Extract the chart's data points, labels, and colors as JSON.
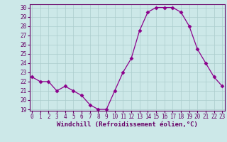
{
  "x": [
    0,
    1,
    2,
    3,
    4,
    5,
    6,
    7,
    8,
    9,
    10,
    11,
    12,
    13,
    14,
    15,
    16,
    17,
    18,
    19,
    20,
    21,
    22,
    23
  ],
  "y": [
    22.5,
    22.0,
    22.0,
    21.0,
    21.5,
    21.0,
    20.5,
    19.5,
    19.0,
    19.0,
    21.0,
    23.0,
    24.5,
    27.5,
    29.5,
    30.0,
    30.0,
    30.0,
    29.5,
    28.0,
    25.5,
    24.0,
    22.5,
    21.5
  ],
  "line_color": "#8B008B",
  "marker": "D",
  "marker_size": 2.5,
  "bg_color": "#cce8e8",
  "grid_color": "#aacccc",
  "xlabel": "Windchill (Refroidissement éolien,°C)",
  "ylabel": "",
  "ylim_min": 19,
  "ylim_max": 30,
  "xlim_min": 0,
  "xlim_max": 23,
  "yticks": [
    19,
    20,
    21,
    22,
    23,
    24,
    25,
    26,
    27,
    28,
    29,
    30
  ],
  "xticks": [
    0,
    1,
    2,
    3,
    4,
    5,
    6,
    7,
    8,
    9,
    10,
    11,
    12,
    13,
    14,
    15,
    16,
    17,
    18,
    19,
    20,
    21,
    22,
    23
  ],
  "tick_label_fontsize": 5.5,
  "xlabel_fontsize": 6.5,
  "text_color": "#660066"
}
